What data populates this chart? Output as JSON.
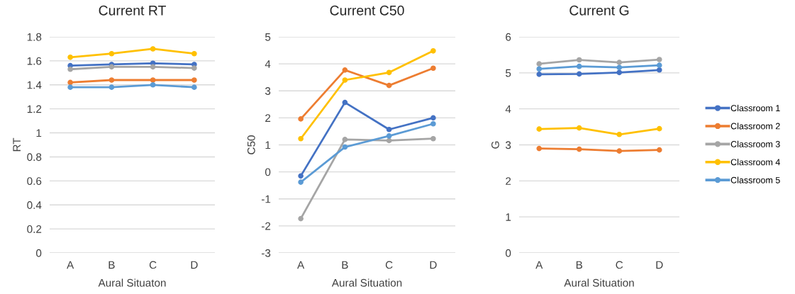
{
  "chart_data": [
    {
      "type": "line",
      "title": "Current RT",
      "xlabel": "Aural Situaton",
      "ylabel": "RT",
      "categories": [
        "A",
        "B",
        "C",
        "D"
      ],
      "ylim": [
        0,
        1.8
      ],
      "yticks": [
        {
          "value": 0,
          "label": "0"
        },
        {
          "value": 0.2,
          "label": "0.2"
        },
        {
          "value": 0.4,
          "label": "0.4"
        },
        {
          "value": 0.6,
          "label": "0.6"
        },
        {
          "value": 0.8,
          "label": "0.8"
        },
        {
          "value": 1,
          "label": "1"
        },
        {
          "value": 1.2,
          "label": "1.2"
        },
        {
          "value": 1.4,
          "label": "1.4"
        },
        {
          "value": 1.6,
          "label": "1.6"
        },
        {
          "value": 1.8,
          "label": "1.8"
        }
      ],
      "grid": "y",
      "marker": "circle",
      "series": [
        {
          "color": "#4472c4",
          "values": [
            1.56,
            1.57,
            1.58,
            1.57
          ]
        },
        {
          "color": "#ed7d31",
          "values": [
            1.42,
            1.44,
            1.44,
            1.44
          ]
        },
        {
          "color": "#a5a5a5",
          "values": [
            1.53,
            1.55,
            1.55,
            1.54
          ]
        },
        {
          "color": "#ffc000",
          "values": [
            1.63,
            1.66,
            1.7,
            1.66
          ]
        },
        {
          "color": "#5b9bd5",
          "values": [
            1.38,
            1.38,
            1.4,
            1.38
          ]
        }
      ]
    },
    {
      "type": "line",
      "title": "Current C50",
      "xlabel": "Aural Situation",
      "ylabel": "C50",
      "categories": [
        "A",
        "B",
        "C",
        "D"
      ],
      "ylim": [
        -3,
        5
      ],
      "yticks": [
        {
          "value": -3,
          "label": "-3"
        },
        {
          "value": -2,
          "label": "-2"
        },
        {
          "value": -1,
          "label": "-1"
        },
        0,
        1,
        2,
        3,
        4,
        5
      ],
      "grid": "y",
      "marker": "circle",
      "series": [
        {
          "color": "#4472c4",
          "values": [
            -0.15,
            2.57,
            1.57,
            2.0
          ]
        },
        {
          "color": "#ed7d31",
          "values": [
            1.96,
            3.77,
            3.2,
            3.84
          ]
        },
        {
          "color": "#a5a5a5",
          "values": [
            -1.73,
            1.2,
            1.16,
            1.23
          ]
        },
        {
          "color": "#ffc000",
          "values": [
            1.23,
            3.4,
            3.68,
            4.48
          ]
        },
        {
          "color": "#5b9bd5",
          "values": [
            -0.38,
            0.92,
            1.33,
            1.78
          ]
        }
      ]
    },
    {
      "type": "line",
      "title": "Current G",
      "xlabel": "Aural Situation",
      "ylabel": "G",
      "categories": [
        "A",
        "B",
        "C",
        "D"
      ],
      "ylim": [
        0,
        6
      ],
      "yticks": [
        0,
        1,
        2,
        3,
        4,
        5,
        6
      ],
      "grid": "y",
      "marker": "circle",
      "legend": "right",
      "series": [
        {
          "name": "Classroom 1",
          "color": "#4472c4",
          "values": [
            4.96,
            4.97,
            5.01,
            5.08
          ]
        },
        {
          "name": "Classroom 2",
          "color": "#ed7d31",
          "values": [
            2.9,
            2.88,
            2.83,
            2.86
          ]
        },
        {
          "name": "Classroom 3",
          "color": "#a5a5a5",
          "values": [
            5.25,
            5.36,
            5.29,
            5.37
          ]
        },
        {
          "name": "Classroom 4",
          "color": "#ffc000",
          "values": [
            3.44,
            3.47,
            3.29,
            3.45
          ]
        },
        {
          "name": "Classroom 5",
          "color": "#5b9bd5",
          "values": [
            5.11,
            5.18,
            5.15,
            5.21
          ]
        }
      ]
    }
  ]
}
